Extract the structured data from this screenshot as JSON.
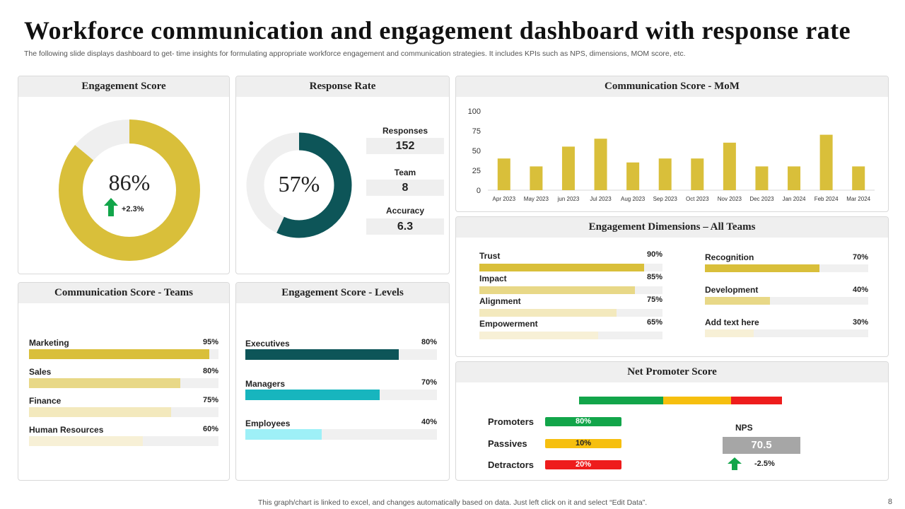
{
  "header": {
    "title": "Workforce communication and engagement dashboard with response rate",
    "subtitle": "The following slide displays dashboard to get- time insights for formulating appropriate workforce  engagement and communication strategies. It includes KPIs such as NPS, dimensions, MOM  score, etc."
  },
  "footer": {
    "note": "This graph/chart is linked to excel,  and changes automatically based on data. Just left click on it and select “Edit Data”.",
    "page": "8"
  },
  "colors": {
    "gold": "#d9bf3a",
    "gold_light": "#e8d887",
    "gold_pale": "#f3e9bd",
    "gold_faint": "#f7f0d6",
    "teal_dark": "#0d5558",
    "teal": "#17b5be",
    "teal_light": "#9ef0f7",
    "green": "#12a54a",
    "amber": "#f6bf0f",
    "red": "#ee1c1c"
  },
  "engagement_score": {
    "title": "Engagement Score",
    "value": "86%",
    "fraction": 0.86,
    "change": "+2.3%"
  },
  "response_rate": {
    "title": "Response Rate",
    "value": "57%",
    "fraction": 0.57,
    "stats": [
      {
        "label": "Responses",
        "value": "152"
      },
      {
        "label": "Team",
        "value": "8"
      },
      {
        "label": "Accuracy",
        "value": "6.3"
      }
    ]
  },
  "comm_mom": {
    "title": "Communication  Score - MoM"
  },
  "dimensions": {
    "title": "Engagement Dimensions – All Teams",
    "left": [
      {
        "label": "Trust",
        "pct_label": "90%",
        "value": 0.9,
        "color": "#d9bf3a"
      },
      {
        "label": "Impact",
        "pct_label": "85%",
        "value": 0.85,
        "color": "#e8d887"
      },
      {
        "label": "Alignment",
        "pct_label": "75%",
        "value": 0.75,
        "color": "#f3e9bd"
      },
      {
        "label": "Empowerment",
        "pct_label": "65%",
        "value": 0.65,
        "color": "#f7f0d6"
      }
    ],
    "right": [
      {
        "label": "Recognition",
        "pct_label": "70%",
        "value": 0.7,
        "color": "#d9bf3a"
      },
      {
        "label": "Development",
        "pct_label": "40%",
        "value": 0.4,
        "color": "#e8d887"
      },
      {
        "label": "Add text here",
        "pct_label": "30%",
        "value": 0.3,
        "color": "#f7f0d6"
      }
    ]
  },
  "comm_teams": {
    "title": "Communication  Score - Teams",
    "items": [
      {
        "label": "Marketing",
        "pct_label": "95%",
        "value": 0.95,
        "color": "#d9bf3a"
      },
      {
        "label": "Sales",
        "pct_label": "80%",
        "value": 0.8,
        "color": "#e8d887"
      },
      {
        "label": "Finance",
        "pct_label": "75%",
        "value": 0.75,
        "color": "#f3e9bd"
      },
      {
        "label": "Human Resources",
        "pct_label": "60%",
        "value": 0.6,
        "color": "#f7f0d6"
      }
    ]
  },
  "levels": {
    "title": "Engagement Score - Levels",
    "items": [
      {
        "label": "Executives",
        "pct_label": "80%",
        "value": 0.8,
        "color": "#0d5558"
      },
      {
        "label": "Managers",
        "pct_label": "70%",
        "value": 0.7,
        "color": "#17b5be"
      },
      {
        "label": "Employees",
        "pct_label": "40%",
        "value": 0.4,
        "color": "#9ef0f7"
      }
    ]
  },
  "nps": {
    "title": "Net Promoter Score",
    "rows": [
      {
        "label": "Promoters",
        "value_label": "80%",
        "color": "#12a54a"
      },
      {
        "label": "Passives",
        "value_label": "10%",
        "color": "#f6bf0f"
      },
      {
        "label": "Detractors",
        "value_label": "20%",
        "color": "#ee1c1c"
      }
    ],
    "scale": [
      {
        "color": "#12a54a",
        "weight": 0.415
      },
      {
        "color": "#f6bf0f",
        "weight": 0.335
      },
      {
        "color": "#ee1c1c",
        "weight": 0.25
      }
    ],
    "nps_label": "NPS",
    "nps_value": "70.5",
    "change": "-2.5%"
  },
  "chart_data": {
    "type": "bar",
    "title": "Communication  Score - MoM",
    "categories": [
      "Apr 2023",
      "May 2023",
      "jun 2023",
      "Jul 2023",
      "Aug 2023",
      "Sep 2023",
      "Oct 2023",
      "Nov 2023",
      "Dec 2023",
      "Jan 2024",
      "Feb 2024",
      "Mar 2024"
    ],
    "values": [
      40,
      30,
      55,
      65,
      35,
      40,
      40,
      60,
      30,
      30,
      70,
      30
    ],
    "ylim": [
      0,
      100
    ],
    "yticks": [
      0,
      25,
      50,
      75,
      100
    ],
    "color": "#d9bf3a",
    "grid": false,
    "legend": "none"
  }
}
